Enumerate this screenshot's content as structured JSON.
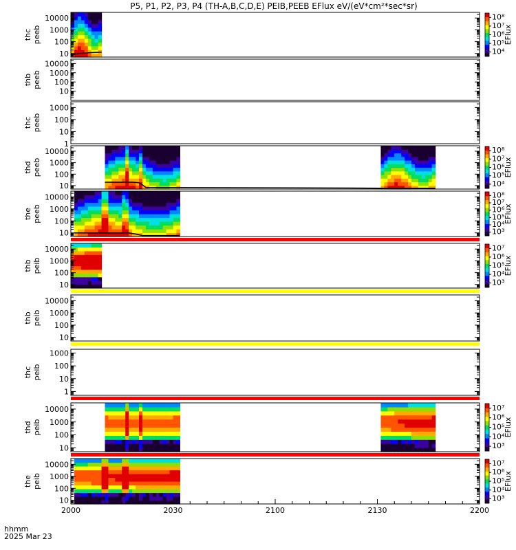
{
  "chart_data": {
    "type": "heatmap",
    "title": "P5, P1, P2, P3, P4 (TH-A,B,C,D,E) PEIB,PEEB EFlux eV/(eV*cm²*sec*sr)",
    "xlabel_line1": "hhmm",
    "xlabel_line2": "2025 Mar 23",
    "x_range_min": [
      0,
      120
    ],
    "x_ticks": [
      {
        "min": 0,
        "label": "2000"
      },
      {
        "min": 30,
        "label": "2030"
      },
      {
        "min": 60,
        "label": "2100"
      },
      {
        "min": 90,
        "label": "2130"
      },
      {
        "min": 120,
        "label": "2200"
      }
    ],
    "colorbar_label": "EFlux",
    "palette": [
      "#1a0030",
      "#3a00a0",
      "#0000ff",
      "#0088ff",
      "#00e0e0",
      "#00dd60",
      "#8ee000",
      "#ffff00",
      "#ffaa00",
      "#ff5500",
      "#e00000"
    ],
    "flag_colors": {
      "red": "#ff0000",
      "yellow": "#ffff00",
      "line": "#000000"
    },
    "panels": [
      {
        "probe": "thc",
        "type": "peeb",
        "ylim": [
          5,
          30000
        ],
        "yticks": [
          10,
          100,
          1000,
          10000
        ],
        "ytick_labels": [
          "10",
          "100",
          "1000",
          "10000"
        ],
        "colorbar": {
          "exp_min": 4,
          "exp_max": 8,
          "labels": [
            "10⁴",
            "10⁵",
            "10⁶",
            "10⁷",
            "10⁸"
          ]
        },
        "segments": [
          [
            0,
            9
          ]
        ],
        "potential": [
          [
            0,
            8
          ],
          [
            3,
            10
          ],
          [
            6,
            12
          ],
          [
            9,
            13
          ]
        ],
        "flag": null
      },
      {
        "probe": "thb",
        "type": "peeb",
        "ylim": [
          1,
          30000
        ],
        "yticks": [
          10,
          100,
          1000,
          10000
        ],
        "ytick_labels": [
          "10",
          "100",
          "1000",
          "10000"
        ],
        "colorbar": null,
        "segments": [],
        "potential": [],
        "flag": null
      },
      {
        "probe": "thc",
        "type": "peeb",
        "ylim": [
          1,
          3000
        ],
        "yticks": [
          1,
          10,
          100,
          1000
        ],
        "ytick_labels": [
          "1",
          "10",
          "100",
          "1000"
        ],
        "colorbar": null,
        "segments": [],
        "potential": [],
        "flag": null
      },
      {
        "probe": "thd",
        "type": "peeb",
        "ylim": [
          5,
          30000
        ],
        "yticks": [
          10,
          100,
          1000,
          10000
        ],
        "ytick_labels": [
          "10",
          "100",
          "1000",
          "10000"
        ],
        "colorbar": {
          "exp_min": 4,
          "exp_max": 8,
          "labels": [
            "10⁴",
            "10⁵",
            "10⁶",
            "10⁷",
            "10⁸"
          ]
        },
        "segments": [
          [
            10,
            32
          ],
          [
            91,
            107
          ]
        ],
        "potential": [
          [
            10,
            20
          ],
          [
            18,
            20
          ],
          [
            20,
            18
          ],
          [
            21,
            12
          ],
          [
            22,
            7
          ],
          [
            91,
            6
          ],
          [
            107,
            6
          ]
        ],
        "flag": null
      },
      {
        "probe": "the",
        "type": "peeb",
        "ylim": [
          5,
          30000
        ],
        "yticks": [
          10,
          100,
          1000,
          10000
        ],
        "ytick_labels": [
          "10",
          "100",
          "1000",
          "10000"
        ],
        "colorbar": {
          "exp_min": 3,
          "exp_max": 8,
          "labels": [
            "10³",
            "10⁴",
            "10⁵",
            "10⁶",
            "10⁷",
            "10⁸"
          ]
        },
        "segments": [
          [
            1,
            32
          ]
        ],
        "potential": [
          [
            1,
            10
          ],
          [
            17,
            10
          ],
          [
            19,
            8
          ],
          [
            21,
            6
          ],
          [
            32,
            6
          ]
        ],
        "flag": "red"
      },
      {
        "probe": "thb",
        "type": "peib",
        "ylim": [
          5,
          30000
        ],
        "yticks": [
          10,
          100,
          1000,
          10000
        ],
        "ytick_labels": [
          "10",
          "100",
          "1000",
          "10000"
        ],
        "colorbar": {
          "exp_min": 3,
          "exp_max": 7,
          "labels": [
            "10³",
            "10⁴",
            "10⁵",
            "10⁶",
            "10⁷"
          ]
        },
        "segments": [
          [
            0,
            9
          ]
        ],
        "potential": [],
        "flag": "yellow"
      },
      {
        "probe": "thb",
        "type": "peib",
        "ylim": [
          5,
          30000
        ],
        "yticks": [
          10,
          100,
          1000,
          10000
        ],
        "ytick_labels": [
          "10",
          "100",
          "1000",
          "10000"
        ],
        "colorbar": null,
        "segments": [],
        "potential": [],
        "flag": "yellow"
      },
      {
        "probe": "thc",
        "type": "peib",
        "ylim": [
          0.5,
          2000
        ],
        "yticks": [
          1,
          10,
          100,
          1000
        ],
        "ytick_labels": [
          "1",
          "10",
          "100",
          "1000"
        ],
        "colorbar": null,
        "segments": [],
        "potential": [],
        "flag": "red"
      },
      {
        "probe": "thd",
        "type": "peib",
        "ylim": [
          5,
          30000
        ],
        "yticks": [
          10,
          100,
          1000,
          10000
        ],
        "ytick_labels": [
          "10",
          "100",
          "1000",
          "10000"
        ],
        "colorbar": {
          "exp_min": 3,
          "exp_max": 7,
          "labels": [
            "10³",
            "10⁴",
            "10⁵",
            "10⁶",
            "10⁷"
          ]
        },
        "segments": [
          [
            10,
            32
          ],
          [
            91,
            107
          ]
        ],
        "potential": [],
        "flag": "red"
      },
      {
        "probe": "the",
        "type": "peib",
        "ylim": [
          5,
          30000
        ],
        "yticks": [
          10,
          100,
          1000,
          10000
        ],
        "ytick_labels": [
          "10",
          "100",
          "1000",
          "10000"
        ],
        "colorbar": {
          "exp_min": 3,
          "exp_max": 7,
          "labels": [
            "10³",
            "10⁴",
            "10⁵",
            "10⁶",
            "10⁷"
          ]
        },
        "segments": [
          [
            1,
            32
          ]
        ],
        "potential": [],
        "flag": null
      }
    ]
  }
}
